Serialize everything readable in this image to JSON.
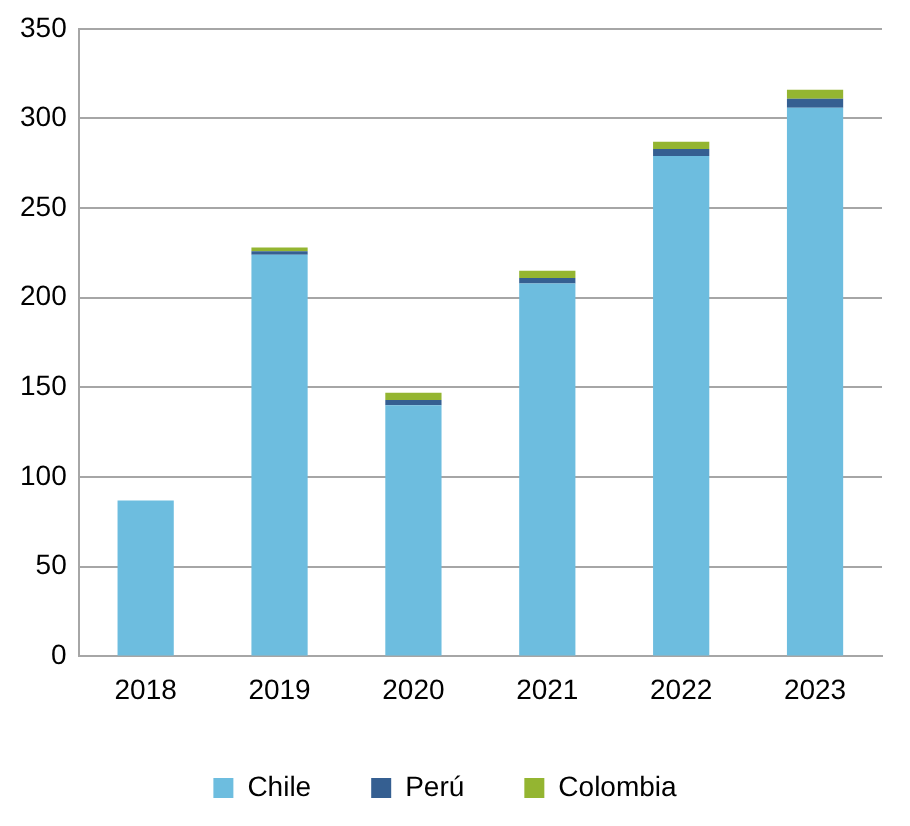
{
  "chart_data": {
    "type": "bar",
    "stacked": true,
    "categories": [
      "2018",
      "2019",
      "2020",
      "2021",
      "2022",
      "2023"
    ],
    "series": [
      {
        "name": "Chile",
        "color": "#6dbddf",
        "values": [
          87,
          224,
          140,
          208,
          279,
          306
        ]
      },
      {
        "name": "Perú",
        "color": "#355f91",
        "values": [
          null,
          2,
          3,
          3,
          4,
          5
        ]
      },
      {
        "name": "Colombia",
        "color": "#94b531",
        "values": [
          null,
          2,
          4,
          4,
          4,
          5
        ]
      }
    ],
    "ylim": [
      0,
      350
    ],
    "yticks": [
      0,
      50,
      100,
      150,
      200,
      250,
      300,
      350
    ],
    "grid": "y",
    "legend": "bottom"
  }
}
